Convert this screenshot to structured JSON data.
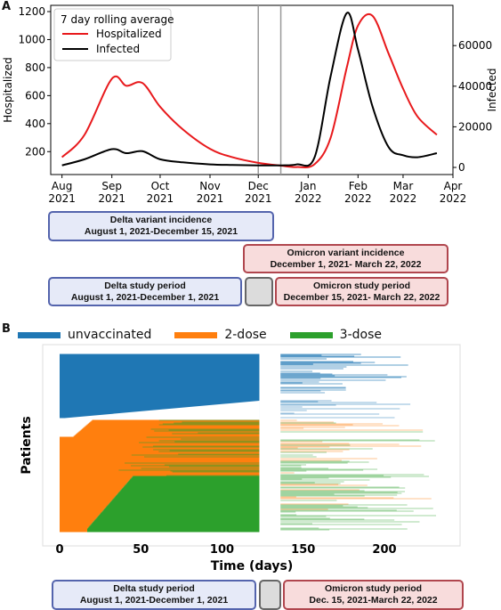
{
  "panel_a": {
    "letter": "A",
    "legend_title": "7 day rolling average",
    "y_left_label": "Hospitalized",
    "y_right_label": "Infected",
    "y_left_ticks": [
      200,
      400,
      600,
      800,
      1000,
      1200
    ],
    "y_right_ticks": [
      0,
      20000,
      40000,
      60000
    ],
    "x_ticks": [
      {
        "line1": "Aug",
        "line2": "2021"
      },
      {
        "line1": "Sep",
        "line2": "2021"
      },
      {
        "line1": "Oct",
        "line2": "2021"
      },
      {
        "line1": "Nov",
        "line2": "2021"
      },
      {
        "line1": "Dec",
        "line2": "2021"
      },
      {
        "line1": "Jan",
        "line2": "2022"
      },
      {
        "line1": "Feb",
        "line2": "2022"
      },
      {
        "line1": "Mar",
        "line2": "2022"
      },
      {
        "line1": "Apr",
        "line2": "2022"
      }
    ],
    "boxes": {
      "delta_incidence": {
        "line1": "Delta variant incidence",
        "line2": "August 1, 2021-December 15, 2021"
      },
      "omicron_incidence": {
        "line1": "Omicron variant incidence",
        "line2": "December 1, 2021- March 22, 2022"
      },
      "delta_study": {
        "line1": "Delta study period",
        "line2": "August 1, 2021-December 1, 2021"
      },
      "omicron_study": {
        "line1": "Omicron study period",
        "line2": "December 15, 2021- March 22, 2022"
      }
    }
  },
  "panel_b": {
    "letter": "B",
    "legend": [
      {
        "label": "unvaccinated",
        "color": "#1f77b4"
      },
      {
        "label": "2-dose",
        "color": "#ff7f0e"
      },
      {
        "label": "3-dose",
        "color": "#2ca02c"
      }
    ],
    "y_label": "Patients",
    "x_label": "Time (days)",
    "x_ticks": [
      "0",
      "50",
      "100",
      "150",
      "200"
    ],
    "boxes": {
      "delta_study": {
        "line1": "Delta study period",
        "line2": "August 1, 2021-December 1, 2021"
      },
      "omicron_study": {
        "line1": "Omicron study period",
        "line2": "Dec. 15, 2021-March 22, 2022"
      }
    }
  },
  "chart_data": [
    {
      "type": "line",
      "x": [
        "2021-08-01",
        "2021-08-15",
        "2021-09-01",
        "2021-09-10",
        "2021-09-20",
        "2021-10-01",
        "2021-10-15",
        "2021-11-01",
        "2021-11-15",
        "2021-12-01",
        "2021-12-15",
        "2021-12-25",
        "2022-01-05",
        "2022-01-15",
        "2022-01-25",
        "2022-02-01",
        "2022-02-10",
        "2022-02-20",
        "2022-03-01",
        "2022-03-10",
        "2022-03-22"
      ],
      "series": [
        {
          "name": "Hospitalized",
          "axis": "left",
          "color": "#e8191c",
          "values": [
            160,
            320,
            720,
            670,
            690,
            520,
            360,
            220,
            160,
            120,
            100,
            90,
            110,
            300,
            800,
            1100,
            1170,
            900,
            650,
            450,
            320
          ]
        },
        {
          "name": "Infected",
          "axis": "right",
          "color": "#000000",
          "values": [
            1000,
            4000,
            9000,
            7000,
            8000,
            4000,
            2500,
            1500,
            1200,
            1000,
            1000,
            1500,
            5000,
            45000,
            76000,
            58000,
            30000,
            10000,
            6000,
            5000,
            7000
          ]
        }
      ],
      "y_left_range": [
        100,
        1200
      ],
      "y_right_range": [
        0,
        75000
      ],
      "x_range": [
        "2021-07-25",
        "2022-04-01"
      ],
      "vertical_lines": [
        "2021-12-01",
        "2021-12-15"
      ]
    },
    {
      "type": "bar",
      "orientation": "horizontal",
      "x_label": "Time (days)",
      "y_label": "Patients",
      "x_range": [
        0,
        235
      ],
      "series": [
        {
          "name": "unvaccinated",
          "color": "#1f77b4"
        },
        {
          "name": "2-dose",
          "color": "#ff7f0e"
        },
        {
          "name": "3-dose",
          "color": "#2ca02c"
        }
      ]
    }
  ]
}
